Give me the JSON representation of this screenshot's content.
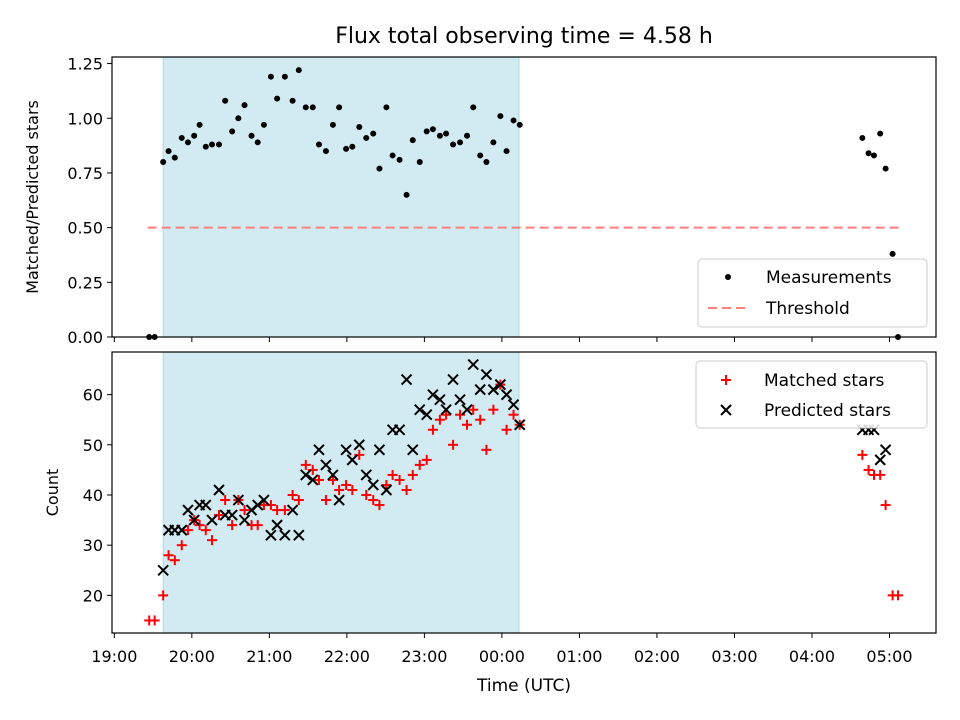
{
  "title": "Flux total observing time = 4.58 h",
  "colors": {
    "band": "#add8e6",
    "measurements": "#000000",
    "threshold": "#ff7f7f",
    "matched": "#ff0000",
    "predicted": "#000000"
  },
  "chart_data": [
    {
      "type": "scatter",
      "panel": "top",
      "ylabel": "Matched/Predicted stars",
      "ylim": [
        0,
        1.28
      ],
      "yticks": [
        0,
        0.25,
        0.5,
        0.75,
        1.0,
        1.25
      ],
      "ytick_labels": [
        "0.00",
        "0.25",
        "0.50",
        "0.75",
        "1.00",
        "1.25"
      ],
      "xlim_hours": [
        18.97,
        29.6
      ],
      "shaded_span_hours": [
        19.63,
        24.22
      ],
      "legend": {
        "position": "lower-right",
        "entries": [
          "Measurements",
          "Threshold"
        ]
      },
      "threshold": {
        "name": "Threshold",
        "y": 0.5,
        "x_hours": [
          19.43,
          29.13
        ]
      },
      "series": [
        {
          "name": "Measurements",
          "marker": "dot",
          "x_hours": [
            19.45,
            19.52,
            19.63,
            19.7,
            19.78,
            19.87,
            19.95,
            20.03,
            20.1,
            20.18,
            20.26,
            20.35,
            20.43,
            20.52,
            20.6,
            20.68,
            20.77,
            20.85,
            20.93,
            21.02,
            21.1,
            21.2,
            21.3,
            21.38,
            21.47,
            21.56,
            21.64,
            21.73,
            21.82,
            21.9,
            21.99,
            22.07,
            22.16,
            22.25,
            22.34,
            22.42,
            22.51,
            22.59,
            22.68,
            22.77,
            22.85,
            22.94,
            23.03,
            23.11,
            23.2,
            23.28,
            23.37,
            23.46,
            23.55,
            23.63,
            23.72,
            23.8,
            23.89,
            23.98,
            24.06,
            24.15,
            24.23,
            28.65,
            28.73,
            28.8,
            28.88,
            28.95,
            29.04,
            29.11
          ],
          "y": [
            0.0,
            0.0,
            0.8,
            0.85,
            0.82,
            0.91,
            0.89,
            0.92,
            0.97,
            0.87,
            0.88,
            0.88,
            1.08,
            0.94,
            1.0,
            1.06,
            0.92,
            0.89,
            0.97,
            1.19,
            1.09,
            1.19,
            1.08,
            1.22,
            1.05,
            1.05,
            0.88,
            0.85,
            0.97,
            1.05,
            0.86,
            0.87,
            0.96,
            0.91,
            0.93,
            0.77,
            1.05,
            0.83,
            0.81,
            0.65,
            0.9,
            0.8,
            0.94,
            0.95,
            0.92,
            0.93,
            0.88,
            0.89,
            0.92,
            1.05,
            0.83,
            0.8,
            0.89,
            1.01,
            0.85,
            0.99,
            0.97,
            0.91,
            0.84,
            0.83,
            0.93,
            0.77,
            0.38,
            0.0
          ]
        }
      ]
    },
    {
      "type": "scatter",
      "panel": "bottom",
      "xlabel": "Time (UTC)",
      "ylabel": "Count",
      "ylim": [
        12.5,
        68.5
      ],
      "yticks": [
        20,
        30,
        40,
        50,
        60
      ],
      "xlim_hours": [
        18.97,
        29.6
      ],
      "xticks_hours": [
        19,
        20,
        21,
        22,
        23,
        24,
        25,
        26,
        27,
        28,
        29
      ],
      "xtick_labels": [
        "19:00",
        "20:00",
        "21:00",
        "22:00",
        "23:00",
        "00:00",
        "01:00",
        "02:00",
        "03:00",
        "04:00",
        "05:00"
      ],
      "shaded_span_hours": [
        19.63,
        24.22
      ],
      "legend": {
        "position": "upper-right",
        "entries": [
          "Matched stars",
          "Predicted stars"
        ]
      },
      "series": [
        {
          "name": "Matched stars",
          "marker": "plus",
          "x_hours": [
            19.45,
            19.52,
            19.63,
            19.7,
            19.78,
            19.87,
            19.95,
            20.03,
            20.1,
            20.18,
            20.26,
            20.35,
            20.43,
            20.52,
            20.6,
            20.68,
            20.77,
            20.85,
            20.93,
            21.02,
            21.1,
            21.2,
            21.3,
            21.38,
            21.47,
            21.56,
            21.64,
            21.73,
            21.82,
            21.9,
            21.99,
            22.07,
            22.16,
            22.25,
            22.34,
            22.42,
            22.51,
            22.59,
            22.68,
            22.77,
            22.85,
            22.94,
            23.03,
            23.11,
            23.2,
            23.28,
            23.37,
            23.46,
            23.55,
            23.63,
            23.72,
            23.8,
            23.89,
            23.98,
            24.06,
            24.15,
            24.23,
            28.65,
            28.73,
            28.8,
            28.88,
            28.95,
            29.04,
            29.11
          ],
          "y": [
            15,
            15,
            20,
            28,
            27,
            30,
            33,
            35,
            34,
            33,
            31,
            36,
            39,
            34,
            39,
            37,
            34,
            34,
            38,
            38,
            37,
            37,
            40,
            39,
            46,
            45,
            43,
            39,
            43,
            41,
            42,
            41,
            48,
            40,
            39,
            38,
            42,
            44,
            43,
            41,
            44,
            46,
            47,
            53,
            55,
            56,
            50,
            56,
            54,
            57,
            55,
            49,
            57,
            62,
            53,
            56,
            54,
            48,
            45,
            44,
            44,
            38,
            20,
            20
          ]
        },
        {
          "name": "Predicted stars",
          "marker": "x",
          "x_hours": [
            19.63,
            19.7,
            19.78,
            19.87,
            19.95,
            20.03,
            20.1,
            20.18,
            20.26,
            20.35,
            20.43,
            20.52,
            20.6,
            20.68,
            20.77,
            20.85,
            20.93,
            21.02,
            21.1,
            21.2,
            21.3,
            21.38,
            21.47,
            21.56,
            21.64,
            21.73,
            21.82,
            21.9,
            21.99,
            22.07,
            22.16,
            22.25,
            22.34,
            22.42,
            22.51,
            22.59,
            22.68,
            22.77,
            22.85,
            22.94,
            23.03,
            23.11,
            23.2,
            23.28,
            23.37,
            23.46,
            23.55,
            23.63,
            23.72,
            23.8,
            23.89,
            23.98,
            24.06,
            24.15,
            24.23,
            28.65,
            28.73,
            28.8,
            28.88,
            28.95
          ],
          "y": [
            25,
            33,
            33,
            33,
            37,
            35,
            38,
            38,
            35,
            41,
            36,
            36,
            39,
            35,
            37,
            38,
            39,
            32,
            34,
            32,
            37,
            32,
            44,
            43,
            49,
            46,
            44,
            39,
            49,
            47,
            50,
            44,
            42,
            49,
            41,
            53,
            53,
            63,
            49,
            57,
            56,
            60,
            59,
            57,
            63,
            59,
            57,
            66,
            61,
            64,
            61,
            62,
            60,
            58,
            54,
            53,
            53,
            53,
            47,
            49
          ]
        }
      ]
    }
  ]
}
